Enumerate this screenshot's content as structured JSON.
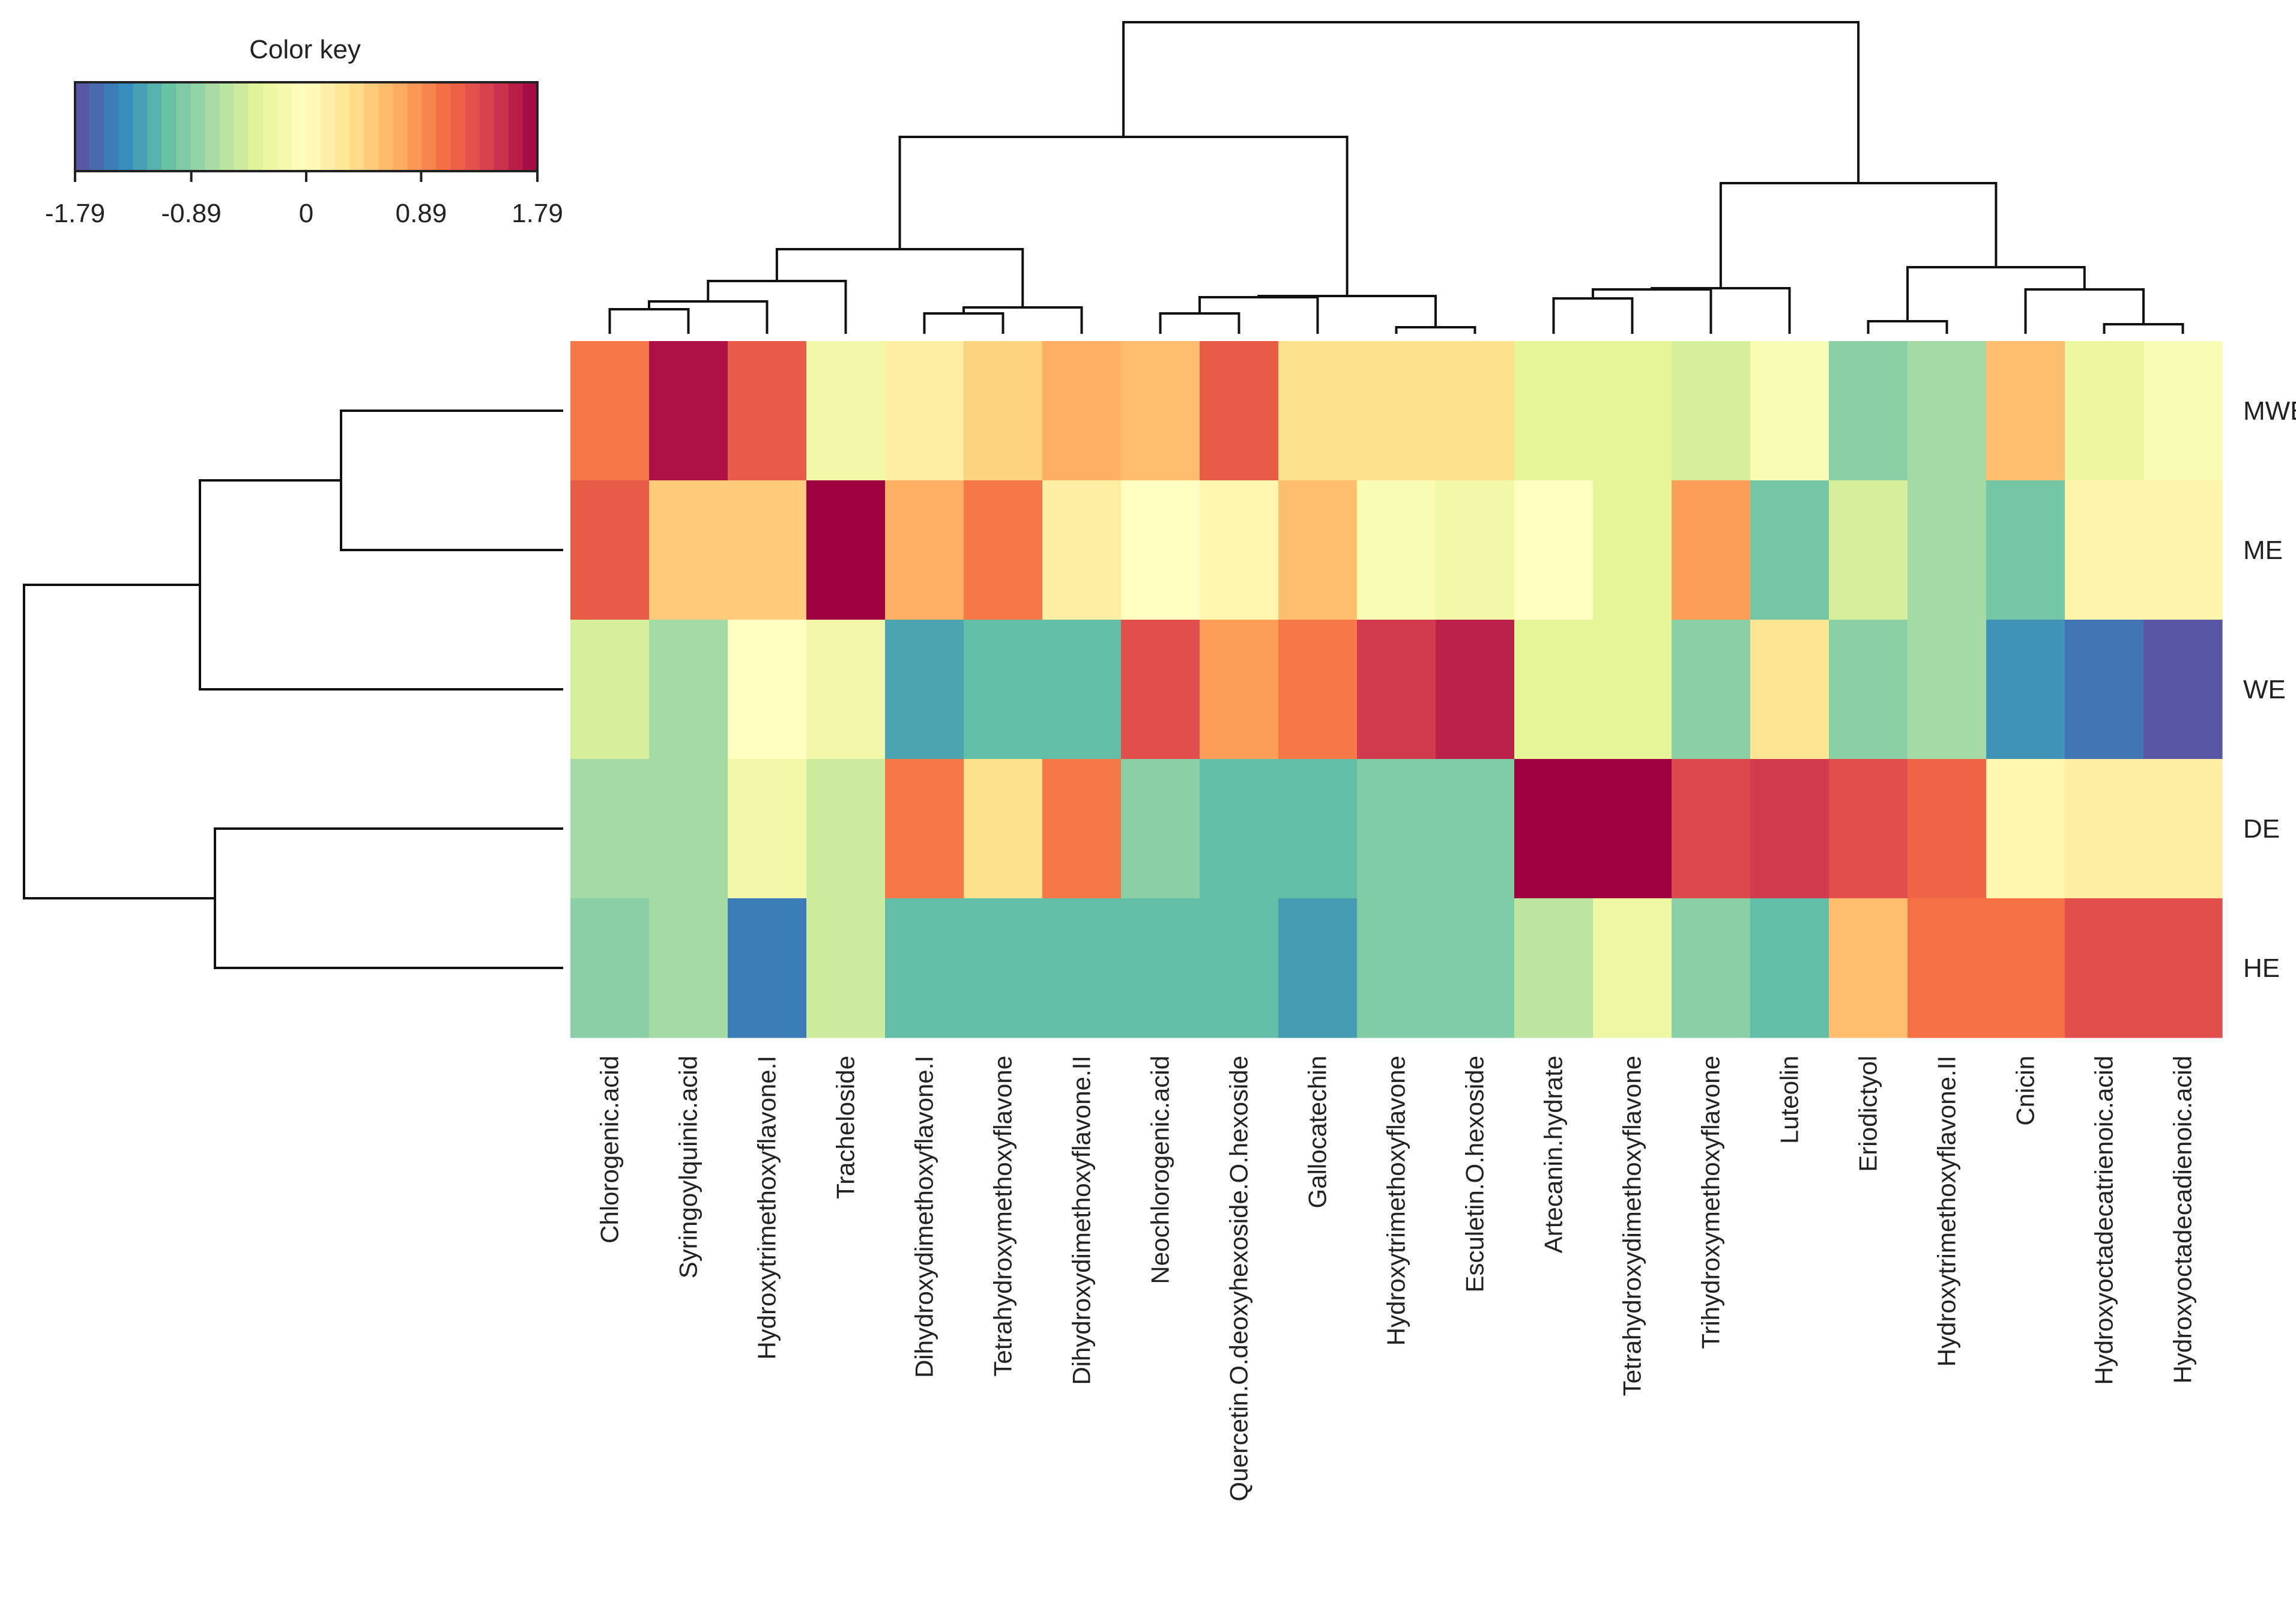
{
  "chart_data": {
    "type": "heatmap",
    "title": "",
    "color_key": {
      "title": "Color key",
      "range": [
        -1.79,
        1.79
      ],
      "ticks": [
        "-1.79",
        "-0.89",
        "0",
        "0.89",
        "1.79"
      ],
      "tick_values": [
        -1.79,
        -0.89,
        0,
        0.89,
        1.79
      ],
      "palette": [
        "#5E4FA2",
        "#3288BD",
        "#66C2A5",
        "#ABDDA4",
        "#E6F598",
        "#FFFFBF",
        "#FEE08B",
        "#FDAE61",
        "#F46D43",
        "#D53E4F",
        "#9E0142"
      ]
    },
    "columns": [
      "Chlorogenic.acid",
      "Syringoylquinic.acid",
      "Hydroxytrimethoxyflavone.I",
      "Tracheloside",
      "Dihydroxydimethoxyflavone.I",
      "Tetrahydroxymethoxyflavone",
      "Dihydroxydimethoxyflavone.II",
      "Neochlorogenic.acid",
      "Quercetin.O.deoxyhexoside.O.hexoside",
      "Gallocatechin",
      "Hydroxytrimethoxyflavone",
      "Esculetin.O.hexoside",
      "Artecanin.hydrate",
      "Tetrahydroxydimethoxyflavone",
      "Trihydroxymethoxyflavone",
      "Luteolin",
      "Eriodictyol",
      "Hydroxytrimethoxyflavone.II",
      "Cnicin",
      "Hydroxyoctadecatrienoic.acid",
      "Hydroxyoctadecadienoic.acid"
    ],
    "rows": [
      "MWE",
      "ME",
      "WE",
      "DE",
      "HE"
    ],
    "values": [
      [
        1.0,
        1.7,
        1.2,
        -0.2,
        0.2,
        0.45,
        0.7,
        0.6,
        1.2,
        0.35,
        0.35,
        0.35,
        -0.35,
        -0.35,
        -0.45,
        -0.1,
        -0.9,
        -0.75,
        0.6,
        -0.3,
        -0.1
      ],
      [
        1.2,
        0.5,
        0.5,
        1.79,
        0.7,
        1.0,
        0.2,
        0.0,
        0.1,
        0.6,
        -0.1,
        -0.2,
        0.0,
        -0.35,
        0.8,
        -1.0,
        -0.45,
        -0.75,
        -1.0,
        0.15,
        0.15
      ],
      [
        -0.45,
        -0.75,
        0.0,
        -0.2,
        -1.25,
        -1.1,
        -1.1,
        1.3,
        0.8,
        1.0,
        1.45,
        1.6,
        -0.35,
        -0.35,
        -0.9,
        0.3,
        -0.9,
        -0.75,
        -1.35,
        -1.55,
        -1.75
      ],
      [
        -0.75,
        -0.75,
        -0.2,
        -0.5,
        1.0,
        0.35,
        1.0,
        -0.9,
        -1.1,
        -1.1,
        -0.95,
        -0.95,
        1.79,
        1.79,
        1.35,
        1.45,
        1.3,
        1.15,
        0.1,
        0.2,
        0.2
      ],
      [
        -0.9,
        -0.75,
        -1.5,
        -0.5,
        -1.1,
        -1.1,
        -1.1,
        -1.1,
        -1.1,
        -1.3,
        -0.95,
        -0.95,
        -0.6,
        -0.25,
        -0.9,
        -1.1,
        0.6,
        1.05,
        1.05,
        1.3,
        1.3
      ]
    ],
    "column_dendrogram": true,
    "row_dendrogram": true
  }
}
